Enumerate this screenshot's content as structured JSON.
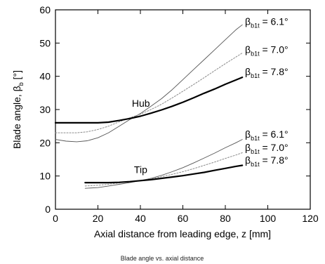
{
  "chart_data": {
    "type": "line",
    "caption": "Blade angle vs. axial distance",
    "xlabel": "Axial distance from leading edge, z [mm]",
    "ylabel": "Blade angle, β",
    "ylabel_sub": "b",
    "ylabel_unit": " [°]",
    "xlim": [
      0,
      120
    ],
    "ylim": [
      0,
      60
    ],
    "xticks": [
      0,
      20,
      40,
      60,
      80,
      100,
      120
    ],
    "yticks": [
      0,
      10,
      20,
      30,
      40,
      50,
      60
    ],
    "grid": false,
    "colors": {
      "axis": "#000000",
      "bold": "#000000",
      "thin": "#555555",
      "dotted": "#8a8a8a"
    },
    "series": [
      {
        "group": "Hub",
        "label_base": "β",
        "label_sub": "b1t",
        "label_value": " = 6.1°",
        "style": "thin",
        "x": [
          0,
          5,
          10,
          15,
          20,
          25,
          30,
          35,
          40,
          45,
          50,
          55,
          60,
          65,
          70,
          75,
          80,
          85,
          88
        ],
        "y": [
          21.0,
          20.5,
          20.3,
          20.6,
          21.5,
          23.0,
          25.0,
          27.0,
          28.8,
          31.0,
          33.3,
          36.0,
          39.0,
          42.0,
          45.0,
          48.0,
          51.0,
          54.0,
          55.5
        ]
      },
      {
        "group": "Hub",
        "label_base": "β",
        "label_sub": "b1t",
        "label_value": " = 7.0°",
        "style": "dotted",
        "x": [
          0,
          5,
          10,
          15,
          20,
          25,
          30,
          35,
          40,
          45,
          50,
          55,
          60,
          65,
          70,
          75,
          80,
          85,
          88
        ],
        "y": [
          23.0,
          23.0,
          23.0,
          23.3,
          24.0,
          25.0,
          26.3,
          27.5,
          28.6,
          30.0,
          31.6,
          33.5,
          35.5,
          37.5,
          39.6,
          41.7,
          43.8,
          45.8,
          47.0
        ]
      },
      {
        "group": "Hub",
        "label_base": "β",
        "label_sub": "b1t",
        "label_value": " = 7.8°",
        "style": "bold",
        "x": [
          0,
          5,
          10,
          15,
          20,
          25,
          30,
          35,
          40,
          45,
          50,
          55,
          60,
          65,
          70,
          75,
          80,
          85,
          88
        ],
        "y": [
          26.0,
          26.0,
          26.0,
          26.0,
          26.0,
          26.2,
          26.7,
          27.3,
          28.0,
          28.9,
          29.9,
          31.0,
          32.2,
          33.5,
          34.9,
          36.2,
          37.6,
          38.9,
          39.7
        ]
      },
      {
        "group": "Tip",
        "label_base": "β",
        "label_sub": "b1t",
        "label_value": " = 6.1°",
        "style": "thin",
        "x": [
          14,
          20,
          25,
          30,
          35,
          40,
          45,
          50,
          55,
          60,
          65,
          70,
          75,
          80,
          85,
          88
        ],
        "y": [
          6.3,
          6.5,
          7.0,
          7.5,
          8.0,
          8.6,
          9.3,
          10.2,
          11.3,
          12.5,
          13.9,
          15.4,
          16.9,
          18.5,
          20.0,
          21.0
        ]
      },
      {
        "group": "Tip",
        "label_base": "β",
        "label_sub": "b1t",
        "label_value": " = 7.0°",
        "style": "dotted",
        "x": [
          14,
          20,
          25,
          30,
          35,
          40,
          45,
          50,
          55,
          60,
          65,
          70,
          75,
          80,
          85,
          88
        ],
        "y": [
          7.0,
          7.2,
          7.5,
          7.9,
          8.3,
          8.7,
          9.2,
          9.8,
          10.5,
          11.3,
          12.2,
          13.2,
          14.2,
          15.3,
          16.3,
          17.0
        ]
      },
      {
        "group": "Tip",
        "label_base": "β",
        "label_sub": "b1t",
        "label_value": " = 7.8°",
        "style": "bold",
        "x": [
          14,
          20,
          25,
          30,
          35,
          40,
          45,
          50,
          55,
          60,
          65,
          70,
          75,
          80,
          85,
          88
        ],
        "y": [
          8.0,
          8.0,
          8.0,
          8.1,
          8.3,
          8.6,
          8.9,
          9.3,
          9.7,
          10.1,
          10.6,
          11.1,
          11.7,
          12.3,
          12.9,
          13.2
        ]
      }
    ],
    "annotations": [
      {
        "text": "Hub",
        "x": 36,
        "y": 30
      },
      {
        "text": "Tip",
        "x": 37,
        "y": 10
      }
    ]
  }
}
